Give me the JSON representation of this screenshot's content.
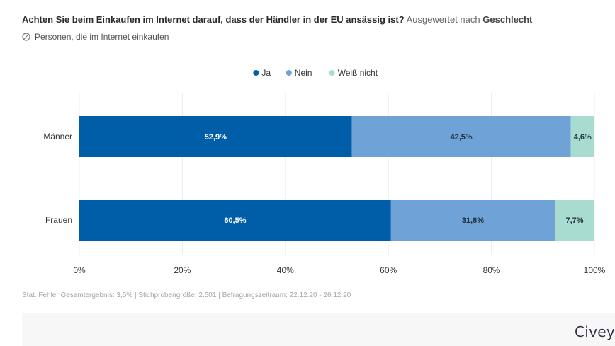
{
  "header": {
    "question": "Achten Sie beim Einkaufen im Internet darauf, dass der Händler in der EU ansässig ist?",
    "evaluated_prefix": "Ausgewertet nach",
    "evaluated_by": "Geschlecht",
    "population_icon": "user-group-icon",
    "population": "Personen, die im Internet einkaufen"
  },
  "footnote": "Stat. Fehler Gesamtergebnis: 3,5% | Stichprobengröße: 2.501 | Befragungszeitraum: 22.12.20 - 26.12.20",
  "brand": "Civey",
  "chart_data": {
    "type": "bar",
    "orientation": "horizontal",
    "stacked": true,
    "categories": [
      "Männer",
      "Frauen"
    ],
    "series": [
      {
        "name": "Ja",
        "values": [
          52.9,
          60.5
        ],
        "labels": [
          "52,9%",
          "60,5%"
        ],
        "color": "#005ea8"
      },
      {
        "name": "Nein",
        "values": [
          42.5,
          31.8
        ],
        "labels": [
          "42,5%",
          "31,8%"
        ],
        "color": "#6fa3d8"
      },
      {
        "name": "Weiß nicht",
        "values": [
          4.6,
          7.7
        ],
        "labels": [
          "4,6%",
          "7,7%"
        ],
        "color": "#a8dcd1"
      }
    ],
    "xlim": [
      0,
      100
    ],
    "x_ticks": [
      0,
      20,
      40,
      60,
      80,
      100
    ],
    "x_tick_labels": [
      "0%",
      "20%",
      "40%",
      "60%",
      "80%",
      "100%"
    ],
    "legend_position": "top-center",
    "grid": true
  }
}
